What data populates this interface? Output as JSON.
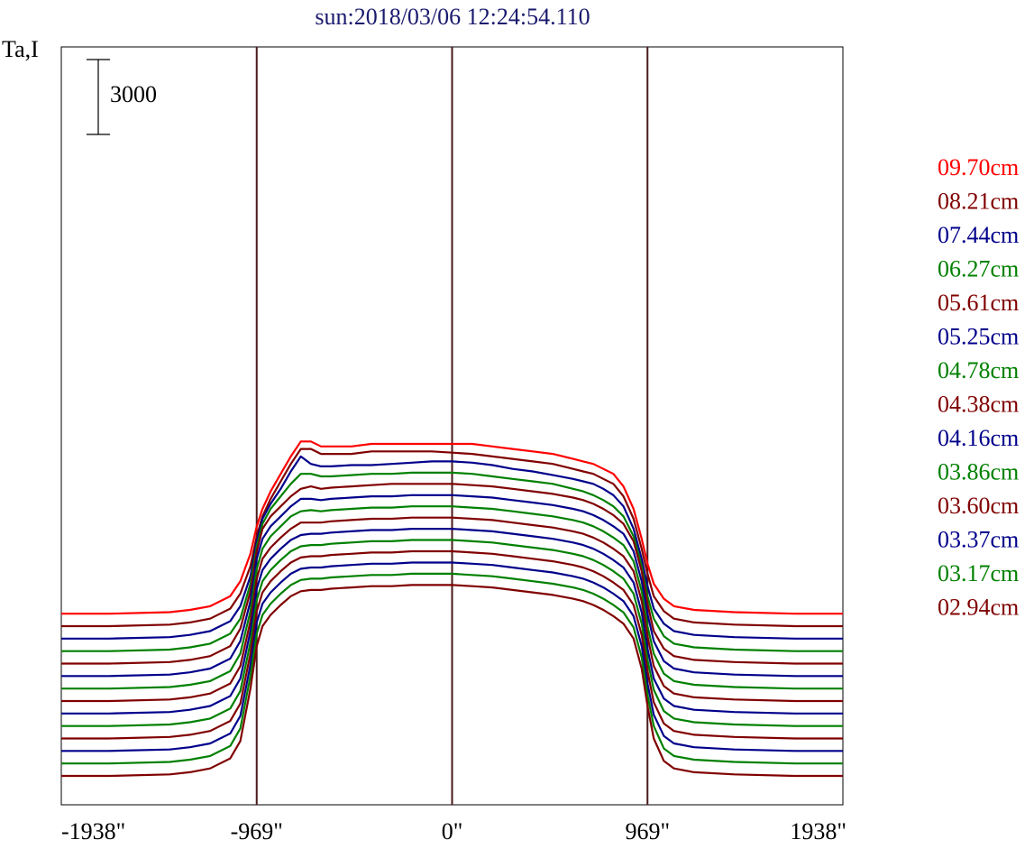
{
  "chart_data": {
    "type": "line",
    "title": "sun:2018/03/06 12:24:54.110",
    "ylabel": "Ta,I",
    "scale_bar_label": "3000",
    "scale_bar_value": 3000,
    "x_ticks": [
      {
        "value": -1938,
        "label": "-1938\""
      },
      {
        "value": -969,
        "label": "-969\""
      },
      {
        "value": 0,
        "label": "0\""
      },
      {
        "value": 969,
        "label": "969\""
      },
      {
        "value": 1938,
        "label": "1938\""
      }
    ],
    "vertical_lines": [
      -969,
      0,
      969
    ],
    "xlim": [
      -1938,
      1938
    ],
    "grid": false,
    "legend_placement": "right",
    "profile_x": [
      -1938,
      -1700,
      -1400,
      -1300,
      -1200,
      -1100,
      -1050,
      -1000,
      -969,
      -940,
      -900,
      -850,
      -800,
      -750,
      -700,
      -650,
      -600,
      -500,
      -400,
      -300,
      -200,
      -100,
      0,
      100,
      200,
      300,
      400,
      500,
      600,
      650,
      700,
      750,
      800,
      850,
      900,
      940,
      969,
      1000,
      1050,
      1100,
      1200,
      1400,
      1700,
      1938
    ],
    "series": [
      {
        "name": "09.70cm",
        "color": "#ff0000",
        "offset": 6000,
        "values": [
          0,
          0,
          60,
          150,
          300,
          700,
          1300,
          2400,
          3500,
          4200,
          4900,
          5600,
          6300,
          6900,
          6900,
          6700,
          6700,
          6700,
          6800,
          6800,
          6800,
          6800,
          6800,
          6800,
          6700,
          6600,
          6500,
          6400,
          6200,
          6100,
          6000,
          5800,
          5600,
          5100,
          4200,
          3000,
          2000,
          1200,
          600,
          300,
          150,
          60,
          0,
          0
        ]
      },
      {
        "name": "08.21cm",
        "color": "#800000",
        "offset": 5500,
        "values": [
          0,
          0,
          60,
          150,
          300,
          700,
          1300,
          2400,
          3600,
          4400,
          5100,
          5800,
          6500,
          7100,
          7100,
          6900,
          6900,
          6900,
          7000,
          7000,
          7000,
          7000,
          6950,
          6900,
          6800,
          6700,
          6600,
          6500,
          6300,
          6200,
          6100,
          5900,
          5700,
          5200,
          4300,
          3100,
          2100,
          1200,
          600,
          300,
          150,
          60,
          0,
          0
        ]
      },
      {
        "name": "07.44cm",
        "color": "#00008b",
        "offset": 5000,
        "values": [
          0,
          0,
          60,
          150,
          300,
          700,
          1300,
          2500,
          3900,
          4800,
          5400,
          6000,
          6700,
          7300,
          7000,
          6900,
          6900,
          6950,
          6950,
          7000,
          7050,
          7100,
          7100,
          7050,
          6950,
          6800,
          6700,
          6550,
          6400,
          6300,
          6200,
          6000,
          5750,
          5300,
          4400,
          3200,
          2100,
          1200,
          600,
          300,
          150,
          60,
          0,
          0
        ]
      },
      {
        "name": "06.27cm",
        "color": "#008000",
        "offset": 4500,
        "values": [
          0,
          0,
          60,
          150,
          300,
          700,
          1300,
          2700,
          4200,
          5100,
          5700,
          6200,
          6700,
          7100,
          7100,
          7000,
          7000,
          7050,
          7100,
          7100,
          7150,
          7150,
          7150,
          7100,
          7000,
          6900,
          6800,
          6700,
          6500,
          6400,
          6250,
          6050,
          5800,
          5400,
          4600,
          3400,
          2200,
          1300,
          600,
          300,
          150,
          60,
          0,
          0
        ]
      },
      {
        "name": "05.61cm",
        "color": "#800000",
        "offset": 4000,
        "values": [
          0,
          0,
          60,
          150,
          300,
          700,
          1400,
          2900,
          4500,
          5400,
          5900,
          6300,
          6700,
          7000,
          7100,
          7000,
          7050,
          7100,
          7150,
          7200,
          7200,
          7200,
          7200,
          7150,
          7100,
          7000,
          6900,
          6800,
          6650,
          6550,
          6400,
          6200,
          5950,
          5600,
          4900,
          3700,
          2400,
          1300,
          600,
          300,
          150,
          60,
          0,
          0
        ]
      },
      {
        "name": "05.25cm",
        "color": "#00008b",
        "offset": 3500,
        "values": [
          0,
          0,
          60,
          150,
          300,
          700,
          1400,
          3000,
          4700,
          5500,
          6000,
          6400,
          6800,
          7100,
          7100,
          7050,
          7100,
          7150,
          7200,
          7200,
          7250,
          7250,
          7250,
          7200,
          7150,
          7050,
          6950,
          6850,
          6700,
          6600,
          6450,
          6250,
          6000,
          5700,
          5000,
          3800,
          2500,
          1400,
          600,
          300,
          150,
          60,
          0,
          0
        ]
      },
      {
        "name": "04.78cm",
        "color": "#008000",
        "offset": 3000,
        "values": [
          0,
          0,
          60,
          150,
          300,
          700,
          1400,
          3100,
          4800,
          5600,
          6100,
          6500,
          6900,
          7100,
          7150,
          7100,
          7150,
          7200,
          7250,
          7250,
          7300,
          7300,
          7300,
          7250,
          7200,
          7100,
          7000,
          6900,
          6750,
          6650,
          6500,
          6300,
          6050,
          5750,
          5100,
          3900,
          2500,
          1400,
          600,
          300,
          150,
          60,
          0,
          0
        ]
      },
      {
        "name": "04.38cm",
        "color": "#800000",
        "offset": 2500,
        "values": [
          0,
          0,
          60,
          150,
          300,
          700,
          1400,
          3200,
          4900,
          5700,
          6150,
          6550,
          6900,
          7150,
          7150,
          7150,
          7200,
          7250,
          7300,
          7300,
          7350,
          7350,
          7350,
          7300,
          7250,
          7150,
          7050,
          6950,
          6800,
          6700,
          6550,
          6350,
          6100,
          5800,
          5200,
          4000,
          2600,
          1400,
          600,
          300,
          150,
          60,
          0,
          0
        ]
      },
      {
        "name": "04.16cm",
        "color": "#00008b",
        "offset": 2000,
        "values": [
          0,
          0,
          60,
          150,
          300,
          700,
          1400,
          3300,
          5000,
          5750,
          6200,
          6600,
          6950,
          7150,
          7200,
          7200,
          7250,
          7300,
          7350,
          7350,
          7400,
          7400,
          7400,
          7350,
          7300,
          7200,
          7100,
          7000,
          6850,
          6750,
          6600,
          6400,
          6150,
          5850,
          5250,
          4050,
          2600,
          1400,
          600,
          300,
          150,
          60,
          0,
          0
        ]
      },
      {
        "name": "03.86cm",
        "color": "#008000",
        "offset": 1500,
        "values": [
          0,
          0,
          60,
          150,
          300,
          700,
          1400,
          3350,
          5050,
          5800,
          6250,
          6650,
          7000,
          7200,
          7250,
          7250,
          7300,
          7350,
          7400,
          7400,
          7450,
          7450,
          7450,
          7400,
          7350,
          7250,
          7150,
          7050,
          6900,
          6800,
          6650,
          6450,
          6200,
          5900,
          5300,
          4100,
          2650,
          1450,
          600,
          300,
          150,
          60,
          0,
          0
        ]
      },
      {
        "name": "03.60cm",
        "color": "#800000",
        "offset": 1000,
        "values": [
          0,
          0,
          60,
          150,
          300,
          700,
          1400,
          3400,
          5100,
          5850,
          6300,
          6700,
          7050,
          7250,
          7300,
          7300,
          7350,
          7400,
          7450,
          7450,
          7500,
          7500,
          7500,
          7450,
          7400,
          7300,
          7200,
          7100,
          6950,
          6850,
          6700,
          6500,
          6250,
          5950,
          5350,
          4150,
          2700,
          1450,
          600,
          300,
          150,
          60,
          0,
          0
        ]
      },
      {
        "name": "03.37cm",
        "color": "#00008b",
        "offset": 500,
        "values": [
          0,
          0,
          60,
          150,
          300,
          700,
          1400,
          3450,
          5150,
          5900,
          6350,
          6750,
          7100,
          7300,
          7350,
          7350,
          7400,
          7450,
          7500,
          7500,
          7550,
          7550,
          7550,
          7500,
          7450,
          7350,
          7250,
          7150,
          7000,
          6900,
          6750,
          6550,
          6300,
          6000,
          5400,
          4200,
          2700,
          1450,
          600,
          300,
          150,
          60,
          0,
          0
        ]
      },
      {
        "name": "03.17cm",
        "color": "#008000",
        "offset": 0,
        "values": [
          0,
          0,
          60,
          150,
          300,
          700,
          1400,
          3500,
          5200,
          5950,
          6400,
          6800,
          7150,
          7350,
          7400,
          7400,
          7450,
          7500,
          7550,
          7550,
          7600,
          7600,
          7600,
          7550,
          7500,
          7400,
          7300,
          7200,
          7050,
          6950,
          6800,
          6600,
          6350,
          6050,
          5450,
          4250,
          2750,
          1500,
          600,
          300,
          150,
          60,
          0,
          0
        ]
      },
      {
        "name": "02.94cm",
        "color": "#800000",
        "offset": -500,
        "values": [
          0,
          0,
          60,
          150,
          300,
          700,
          1400,
          3500,
          5200,
          6000,
          6450,
          6850,
          7200,
          7400,
          7450,
          7450,
          7500,
          7550,
          7600,
          7600,
          7650,
          7650,
          7650,
          7600,
          7550,
          7450,
          7350,
          7250,
          7100,
          7000,
          6850,
          6650,
          6400,
          6100,
          5500,
          4300,
          2800,
          1500,
          600,
          300,
          150,
          60,
          0,
          0
        ]
      }
    ]
  }
}
